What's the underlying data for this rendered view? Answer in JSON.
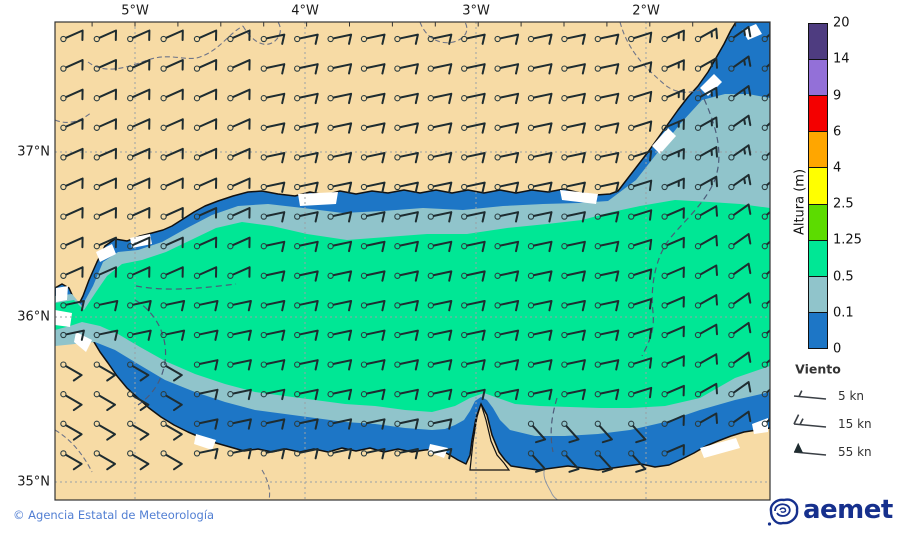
{
  "map": {
    "axis": {
      "lon_labels": [
        "5°W",
        "4°W",
        "3°W",
        "2°W"
      ],
      "lat_labels": [
        "37°N",
        "36°N",
        "35°N"
      ]
    },
    "colors": {
      "land": "#f7dba5",
      "coastline": "#111111",
      "grid": "#9aa0a6",
      "land_border": "#6e7488",
      "sea_border_dash": "#4c5a78",
      "barb": "#1e2c30",
      "no_data": "#ffffff",
      "frame": "#333333"
    }
  },
  "colorbar": {
    "title": "Altura (m)",
    "levels": [
      "0",
      "0.1",
      "0.5",
      "1.25",
      "2.5",
      "4",
      "6",
      "9",
      "14",
      "20"
    ],
    "colors": [
      "#1d76c6",
      "#90c4cb",
      "#00e795",
      "#5cdc00",
      "#ffff00",
      "#ffa600",
      "#f40000",
      "#9370d8",
      "#4e3c80"
    ]
  },
  "wind_legend": {
    "title": "Viento",
    "items": [
      {
        "speed": "5 kn",
        "type": "half"
      },
      {
        "speed": "15 kn",
        "type": "full_half"
      },
      {
        "speed": "55 kn",
        "type": "flag"
      }
    ]
  },
  "footer": {
    "copyright": "© Agencia Estatal de Meteorología",
    "copyright_color": "#527fd3"
  },
  "logo": {
    "text": "aemet",
    "color": "#16308d"
  }
}
